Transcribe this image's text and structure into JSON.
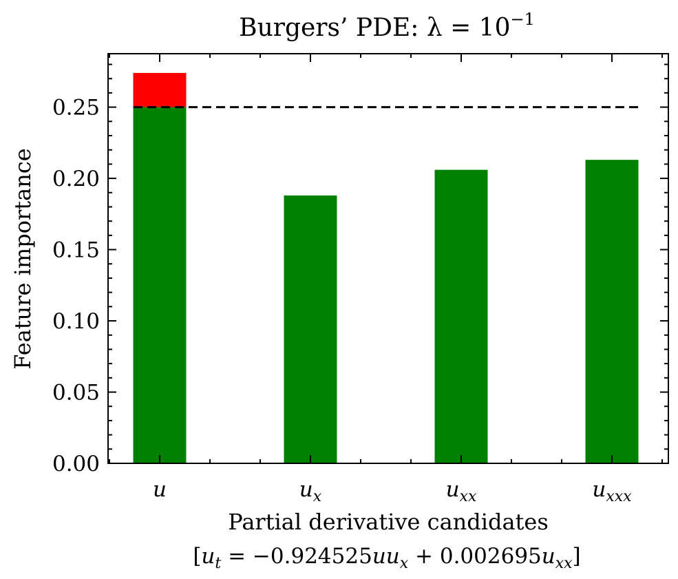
{
  "chart_data": {
    "type": "bar",
    "title": "Burgers’ PDE: λ = 10",
    "title_exponent": "−1",
    "categories": [
      {
        "base": "u",
        "sub": ""
      },
      {
        "base": "u",
        "sub": "x"
      },
      {
        "base": "u",
        "sub": "xx"
      },
      {
        "base": "u",
        "sub": "xxx"
      }
    ],
    "series": [
      {
        "values": [
          0.25,
          0.188,
          0.206,
          0.213
        ],
        "color": "#008000"
      },
      {
        "values": [
          0.024,
          0,
          0,
          0
        ],
        "color": "#ff0000"
      }
    ],
    "threshold": {
      "value": 0.25,
      "style": "dashed",
      "color": "#000000"
    },
    "xlabel": "Partial derivative candidates",
    "xlabel_line2": "[u_t = −0.924525uu_x + 0.002695u_xx]",
    "ylabel": "Feature importance",
    "ylim": [
      0,
      0.2875
    ],
    "yticks": [
      "0.00",
      "0.05",
      "0.10",
      "0.15",
      "0.20",
      "0.25"
    ],
    "grid": false,
    "legend": "none"
  }
}
